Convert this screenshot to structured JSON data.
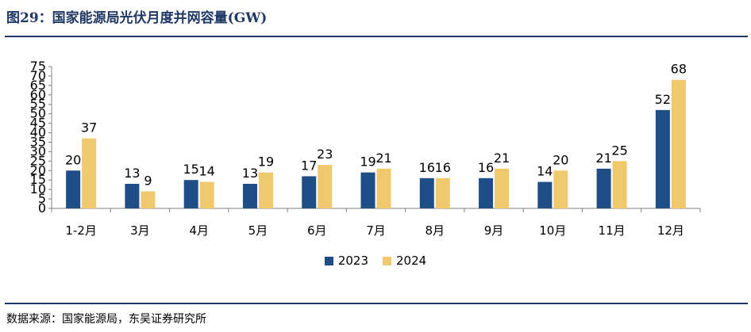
{
  "title": "图29：国家能源局光伏月度并网容量(GW)",
  "source": "数据来源：国家能源局，东吴证券研究所",
  "chart_data": {
    "type": "bar",
    "categories": [
      "1-2月",
      "3月",
      "4月",
      "5月",
      "6月",
      "7月",
      "8月",
      "9月",
      "10月",
      "11月",
      "12月"
    ],
    "series": [
      {
        "name": "2023",
        "color": "#1f4e87",
        "values": [
          20,
          13,
          15,
          13,
          17,
          19,
          16,
          16,
          14,
          21,
          52
        ]
      },
      {
        "name": "2024",
        "color": "#f0c96e",
        "values": [
          37,
          9,
          14,
          19,
          23,
          21,
          16,
          21,
          20,
          25,
          68
        ]
      }
    ],
    "ylim": [
      0,
      75
    ],
    "yticks": [
      0,
      5,
      10,
      15,
      20,
      25,
      30,
      35,
      40,
      45,
      50,
      55,
      60,
      65,
      70,
      75
    ],
    "legend_position": "bottom"
  }
}
